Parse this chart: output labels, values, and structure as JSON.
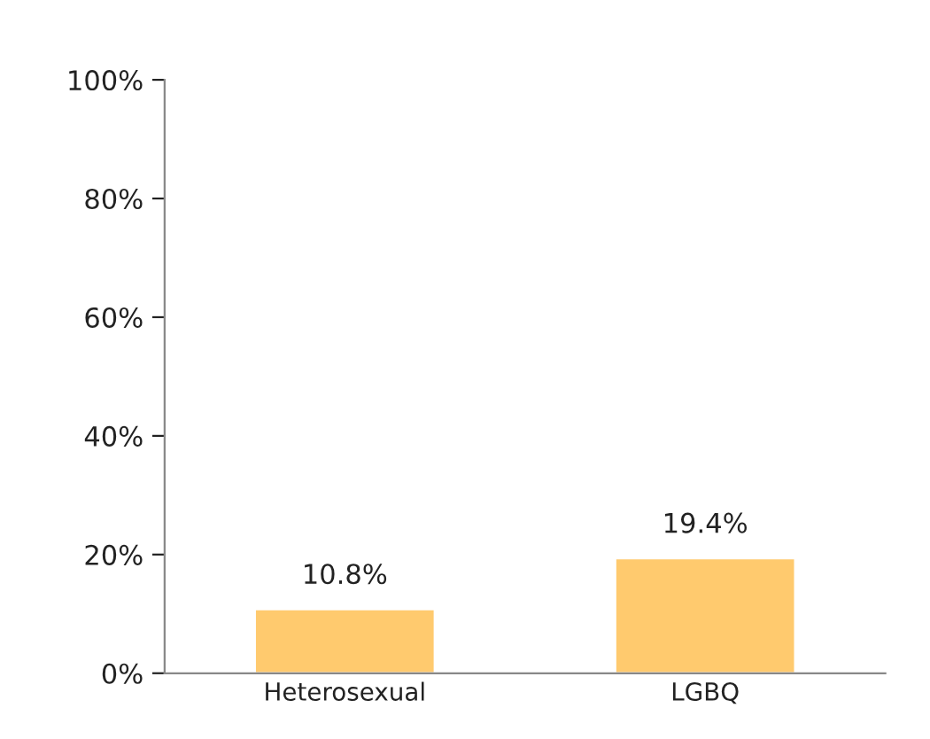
{
  "chart_data": {
    "type": "bar",
    "categories": [
      "Heterosexual",
      "LGBQ"
    ],
    "values": [
      10.8,
      19.4
    ],
    "color": "#ffca6e",
    "value_labels": [
      "10.8%",
      "19.4%"
    ],
    "ylim": [
      0,
      100
    ],
    "yticks": [
      {
        "value": 0,
        "label": "0%"
      },
      {
        "value": 20,
        "label": "20%"
      },
      {
        "value": 40,
        "label": "40%"
      },
      {
        "value": 60,
        "label": "60%"
      },
      {
        "value": 80,
        "label": "80%"
      },
      {
        "value": 100,
        "label": "100%"
      }
    ],
    "grid": false,
    "legend": false
  }
}
